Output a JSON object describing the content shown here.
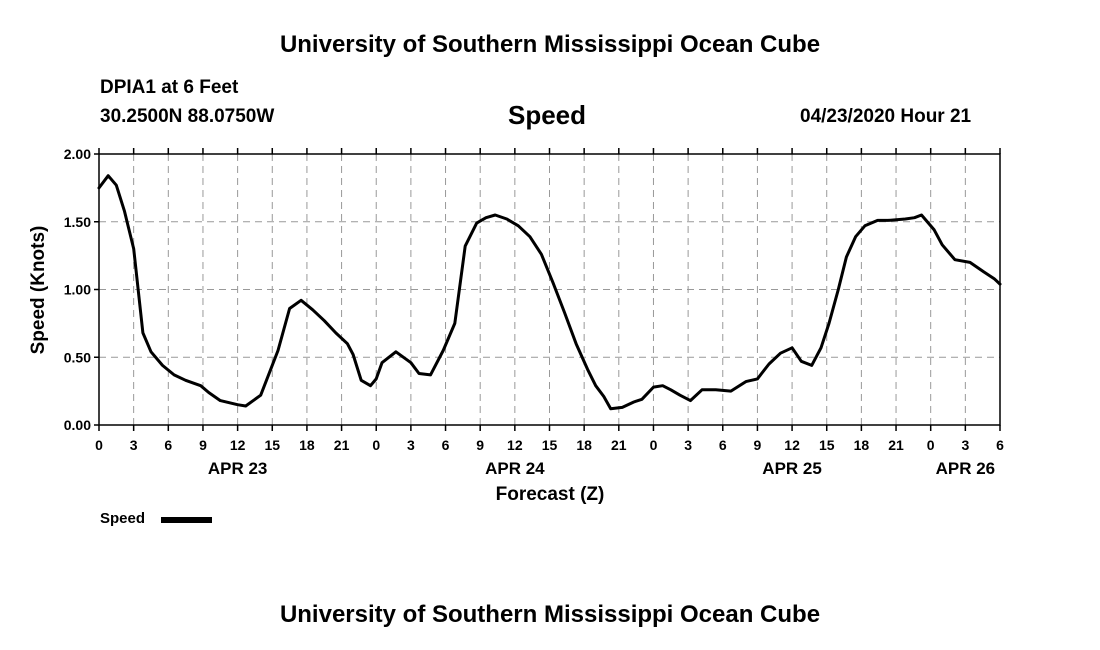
{
  "page": {
    "title_top": "University of Southern Mississippi Ocean Cube",
    "title_bottom": "University of Southern Mississippi Ocean Cube",
    "station": "DPIA1 at 6 Feet",
    "coordinates": "30.2500N 88.0750W",
    "variable": "Speed",
    "forecast_start": "04/23/2020 Hour 21"
  },
  "chart_data": {
    "type": "line",
    "title": "Speed",
    "xlabel": "Forecast (Z)",
    "ylabel": "Speed (Knots)",
    "xlim": [
      0,
      78
    ],
    "ylim": [
      0,
      2
    ],
    "grid": true,
    "y_ticks": [
      {
        "value": 0,
        "label": "0.00"
      },
      {
        "value": 0.5,
        "label": "0.50"
      },
      {
        "value": 1.0,
        "label": "1.00"
      },
      {
        "value": 1.5,
        "label": "1.50"
      },
      {
        "value": 2.0,
        "label": "2.00"
      }
    ],
    "x_ticks": [
      {
        "hour": 0,
        "label": "0"
      },
      {
        "hour": 3,
        "label": "3"
      },
      {
        "hour": 6,
        "label": "6"
      },
      {
        "hour": 9,
        "label": "9"
      },
      {
        "hour": 12,
        "label": "12"
      },
      {
        "hour": 15,
        "label": "15"
      },
      {
        "hour": 18,
        "label": "18"
      },
      {
        "hour": 21,
        "label": "21"
      },
      {
        "hour": 24,
        "label": "0"
      },
      {
        "hour": 27,
        "label": "3"
      },
      {
        "hour": 30,
        "label": "6"
      },
      {
        "hour": 33,
        "label": "9"
      },
      {
        "hour": 36,
        "label": "12"
      },
      {
        "hour": 39,
        "label": "15"
      },
      {
        "hour": 42,
        "label": "18"
      },
      {
        "hour": 45,
        "label": "21"
      },
      {
        "hour": 48,
        "label": "0"
      },
      {
        "hour": 51,
        "label": "3"
      },
      {
        "hour": 54,
        "label": "6"
      },
      {
        "hour": 57,
        "label": "9"
      },
      {
        "hour": 60,
        "label": "12"
      },
      {
        "hour": 63,
        "label": "15"
      },
      {
        "hour": 66,
        "label": "18"
      },
      {
        "hour": 69,
        "label": "21"
      },
      {
        "hour": 72,
        "label": "0"
      },
      {
        "hour": 75,
        "label": "3"
      },
      {
        "hour": 78,
        "label": "6"
      }
    ],
    "date_labels": [
      {
        "hour": 12,
        "label": "APR 23"
      },
      {
        "hour": 36,
        "label": "APR 24"
      },
      {
        "hour": 60,
        "label": "APR 25"
      },
      {
        "hour": 75,
        "label": "APR 26"
      }
    ],
    "legend": [
      {
        "name": "Speed"
      }
    ],
    "series": [
      {
        "name": "Speed",
        "x": [
          0,
          0.8,
          1.5,
          2.2,
          3,
          3.8,
          4.5,
          5.5,
          6.5,
          7.5,
          8.8,
          9.5,
          10.5,
          12,
          12.7,
          14,
          15.5,
          16.5,
          17.5,
          18.5,
          19.5,
          20.5,
          21.5,
          22,
          22.7,
          23.5,
          24,
          24.5,
          25.7,
          27,
          27.7,
          28.7,
          29.8,
          30.8,
          31.7,
          32.7,
          33.5,
          34.3,
          35.3,
          36.3,
          37.3,
          38.3,
          39.3,
          40.3,
          41.3,
          42.3,
          43,
          43.7,
          44.3,
          45.3,
          46.3,
          47,
          48,
          48.8,
          49.5,
          50.3,
          51.2,
          52.2,
          53.4,
          54.7,
          56,
          57,
          58,
          59,
          60,
          60.8,
          61.7,
          62.5,
          63.2,
          64,
          64.7,
          65.5,
          66.3,
          67.4,
          68.3,
          69.8,
          70.6,
          71.2,
          72.3,
          73,
          74.1,
          75.4,
          76.6,
          77.5,
          78
        ],
        "values": [
          1.75,
          1.84,
          1.77,
          1.58,
          1.3,
          0.68,
          0.54,
          0.44,
          0.37,
          0.33,
          0.29,
          0.24,
          0.18,
          0.15,
          0.14,
          0.22,
          0.55,
          0.86,
          0.92,
          0.85,
          0.77,
          0.68,
          0.6,
          0.52,
          0.33,
          0.29,
          0.34,
          0.46,
          0.54,
          0.46,
          0.38,
          0.37,
          0.55,
          0.75,
          1.32,
          1.49,
          1.53,
          1.55,
          1.52,
          1.47,
          1.39,
          1.26,
          1.05,
          0.83,
          0.6,
          0.41,
          0.29,
          0.21,
          0.12,
          0.13,
          0.17,
          0.19,
          0.28,
          0.29,
          0.26,
          0.22,
          0.18,
          0.26,
          0.26,
          0.25,
          0.32,
          0.34,
          0.45,
          0.53,
          0.57,
          0.47,
          0.44,
          0.57,
          0.75,
          1.0,
          1.24,
          1.39,
          1.47,
          1.51,
          1.51,
          1.52,
          1.53,
          1.55,
          1.44,
          1.33,
          1.22,
          1.2,
          1.13,
          1.08,
          1.04
        ]
      }
    ]
  }
}
